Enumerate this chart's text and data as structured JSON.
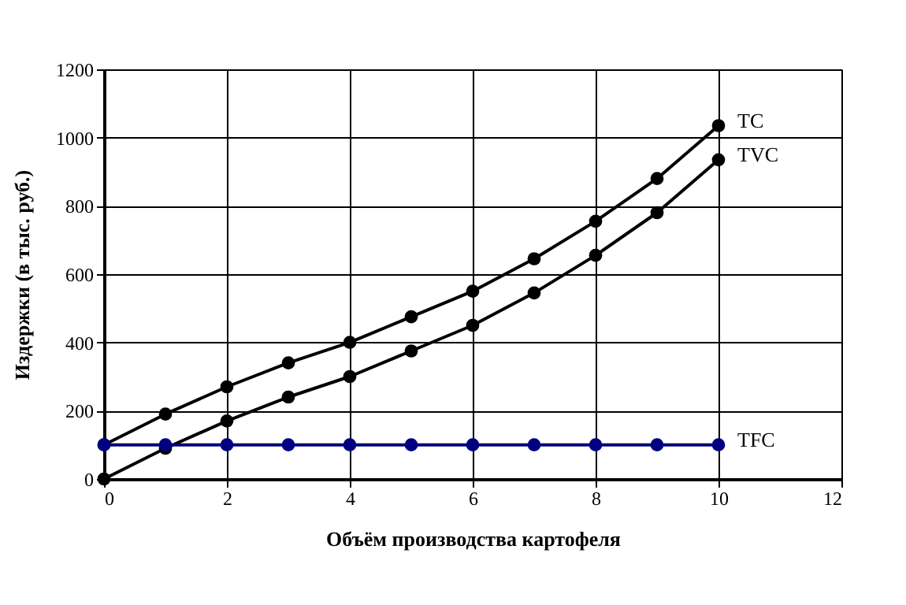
{
  "chart_data": {
    "type": "line",
    "xlabel": "Объём производства картофеля",
    "ylabel": "Издержки (в тыс. руб.)",
    "x": [
      0,
      1,
      2,
      3,
      4,
      5,
      6,
      7,
      8,
      9,
      10
    ],
    "series": [
      {
        "name": "TC",
        "color": "#000000",
        "values": [
          100,
          190,
          270,
          340,
          400,
          475,
          550,
          645,
          755,
          880,
          1035
        ]
      },
      {
        "name": "TVC",
        "color": "#000000",
        "values": [
          0,
          90,
          170,
          240,
          300,
          375,
          450,
          545,
          655,
          780,
          935
        ]
      },
      {
        "name": "TFC",
        "color": "#000080",
        "values": [
          100,
          100,
          100,
          100,
          100,
          100,
          100,
          100,
          100,
          100,
          100
        ]
      }
    ],
    "xlim": [
      0,
      12
    ],
    "xticks": [
      0,
      2,
      4,
      6,
      8,
      10,
      12
    ],
    "ylim": [
      0,
      1200
    ],
    "yticks": [
      0,
      200,
      400,
      600,
      800,
      1000,
      1200
    ],
    "grid": true,
    "marker": "circle"
  }
}
